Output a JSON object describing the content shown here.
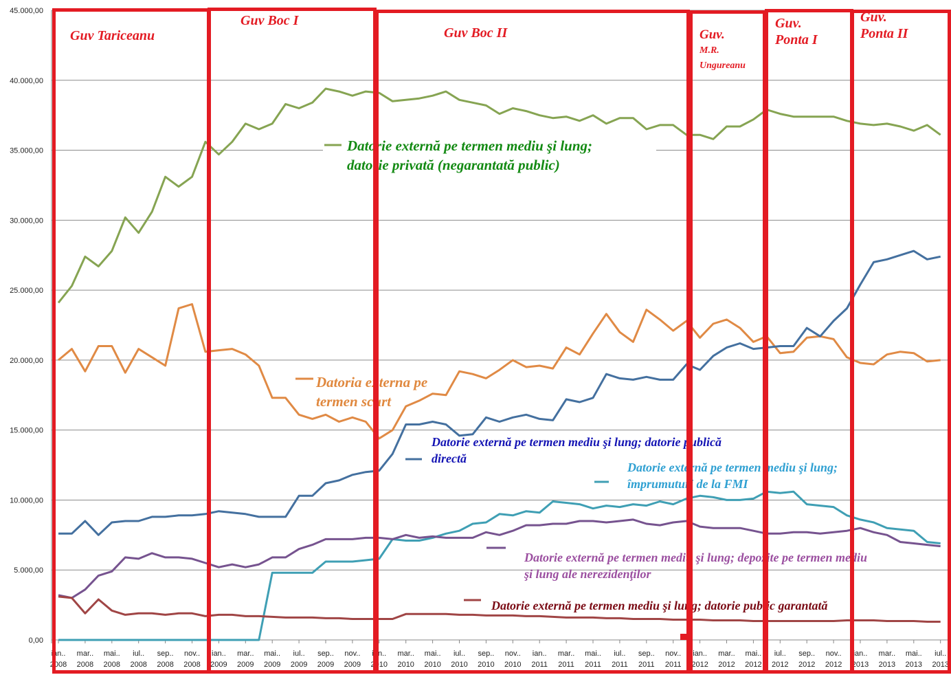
{
  "chart_data": {
    "type": "line",
    "title": "",
    "xlabel": "",
    "ylabel": "",
    "ylim": [
      0,
      45000
    ],
    "grid": true,
    "y_ticks": [
      "0,00",
      "5.000,00",
      "10.000,00",
      "15.000,00",
      "20.000,00",
      "25.000,00",
      "30.000,00",
      "35.000,00",
      "40.000,00",
      "45.000,00"
    ],
    "x_ticks": [
      [
        "ian..",
        "2008"
      ],
      [
        "mar..",
        "2008"
      ],
      [
        "mai..",
        "2008"
      ],
      [
        "iul..",
        "2008"
      ],
      [
        "sep..",
        "2008"
      ],
      [
        "nov..",
        "2008"
      ],
      [
        "ian..",
        "2009"
      ],
      [
        "mar..",
        "2009"
      ],
      [
        "mai..",
        "2009"
      ],
      [
        "iul..",
        "2009"
      ],
      [
        "sep..",
        "2009"
      ],
      [
        "nov..",
        "2009"
      ],
      [
        "ian..",
        "2010"
      ],
      [
        "mar..",
        "2010"
      ],
      [
        "mai..",
        "2010"
      ],
      [
        "iul..",
        "2010"
      ],
      [
        "sep..",
        "2010"
      ],
      [
        "nov..",
        "2010"
      ],
      [
        "ian..",
        "2011"
      ],
      [
        "mar..",
        "2011"
      ],
      [
        "mai..",
        "2011"
      ],
      [
        "iul..",
        "2011"
      ],
      [
        "sep..",
        "2011"
      ],
      [
        "nov..",
        "2011"
      ],
      [
        "ian..",
        "2012"
      ],
      [
        "mar..",
        "2012"
      ],
      [
        "mai..",
        "2012"
      ],
      [
        "iul..",
        "2012"
      ],
      [
        "sep..",
        "2012"
      ],
      [
        "nov..",
        "2012"
      ],
      [
        "ian..",
        "2013"
      ],
      [
        "mar..",
        "2013"
      ],
      [
        "mai..",
        "2013"
      ],
      [
        "iul..",
        "2013"
      ]
    ],
    "series": [
      {
        "name": "Datorie externă pe termen mediu şi lung; datorie privată (negarantată public)",
        "color": "#86a452",
        "label_color": "#138a13",
        "values": [
          24100,
          25300,
          27400,
          26700,
          27800,
          30200,
          29100,
          30600,
          33100,
          32400,
          33100,
          35600,
          34700,
          35600,
          36900,
          36500,
          36900,
          38300,
          38000,
          38400,
          39400,
          39200,
          38900,
          39200,
          39100,
          38500,
          38600,
          38700,
          38900,
          39200,
          38600,
          38400,
          38200,
          37600,
          38000,
          37800,
          37500,
          37300,
          37400,
          37100,
          37500,
          36900,
          37300,
          37300,
          36500,
          36800,
          36800,
          36100,
          36100,
          35800,
          36700,
          36700,
          37200,
          37900,
          37600,
          37400,
          37400,
          37400,
          37400,
          37100,
          36900,
          36800,
          36900,
          36700,
          36400,
          36800,
          36100
        ]
      },
      {
        "name": "Datoria externa pe termen scurt",
        "color": "#e08a45",
        "label_color": "#e0883e",
        "values": [
          20000,
          20800,
          19200,
          21000,
          21000,
          19100,
          20800,
          20200,
          19600,
          23700,
          24000,
          20600,
          20700,
          20800,
          20400,
          19600,
          17300,
          17300,
          16100,
          15800,
          16100,
          15600,
          15900,
          15600,
          14400,
          15000,
          16700,
          17100,
          17600,
          17500,
          19200,
          19000,
          18700,
          19300,
          20000,
          19500,
          19600,
          19400,
          20900,
          20400,
          21900,
          23300,
          22000,
          21300,
          23600,
          22900,
          22100,
          22800,
          21600,
          22600,
          22900,
          22300,
          21300,
          21700,
          20500,
          20600,
          21600,
          21700,
          21500,
          20200,
          19800,
          19700,
          20400,
          20600,
          20500,
          19900,
          20000
        ]
      },
      {
        "name": "Datorie externă pe termen mediu şi lung; datorie publică directă",
        "color": "#44709f",
        "label_color": "#1414b4",
        "values": [
          7600,
          7600,
          8500,
          7500,
          8400,
          8500,
          8500,
          8800,
          8800,
          8900,
          8900,
          9000,
          9200,
          9100,
          9000,
          8800,
          8800,
          8800,
          10300,
          10300,
          11200,
          11400,
          11800,
          12000,
          12100,
          13300,
          15400,
          15400,
          15600,
          15400,
          14600,
          14700,
          15900,
          15600,
          15900,
          16100,
          15800,
          15700,
          17200,
          17000,
          17300,
          19000,
          18700,
          18600,
          18800,
          18600,
          18600,
          19700,
          19300,
          20300,
          20900,
          21200,
          20800,
          20900,
          21000,
          21000,
          22300,
          21700,
          22800,
          23700,
          25400,
          27000,
          27200,
          27500,
          27800,
          27200,
          27400
        ]
      },
      {
        "name": "Datorie externă pe termen mediu şi lung; împrumuturi de la FMI",
        "color": "#3f9fb4",
        "label_color": "#2fa0d2",
        "values": [
          0,
          0,
          0,
          0,
          0,
          0,
          0,
          0,
          0,
          0,
          0,
          0,
          0,
          0,
          0,
          0,
          4800,
          4800,
          4800,
          4800,
          5600,
          5600,
          5600,
          5700,
          5800,
          7200,
          7100,
          7100,
          7300,
          7600,
          7800,
          8300,
          8400,
          9000,
          8900,
          9200,
          9100,
          9900,
          9800,
          9700,
          9400,
          9600,
          9500,
          9700,
          9600,
          9900,
          9700,
          10100,
          10300,
          10200,
          10000,
          10000,
          10100,
          10600,
          10500,
          10600,
          9700,
          9600,
          9500,
          8900,
          8600,
          8400,
          8000,
          7900,
          7800,
          7000,
          6900
        ]
      },
      {
        "name": "Datorie externă pe termen mediu şi lung; depozite pe termen mediu şi lung ale nerezidenţilor",
        "color": "#76538f",
        "label_color": "#9b4fa0",
        "values": [
          3200,
          3000,
          3600,
          4600,
          4900,
          5900,
          5800,
          6200,
          5900,
          5900,
          5800,
          5500,
          5200,
          5400,
          5200,
          5400,
          5900,
          5900,
          6500,
          6800,
          7200,
          7200,
          7200,
          7300,
          7300,
          7200,
          7500,
          7300,
          7400,
          7300,
          7300,
          7300,
          7700,
          7500,
          7800,
          8200,
          8200,
          8300,
          8300,
          8500,
          8500,
          8400,
          8500,
          8600,
          8300,
          8200,
          8400,
          8500,
          8100,
          8000,
          8000,
          8000,
          7800,
          7600,
          7600,
          7700,
          7700,
          7600,
          7700,
          7800,
          8000,
          7700,
          7500,
          7000,
          6900,
          6800,
          6700
        ]
      },
      {
        "name": "Datorie externă pe termen mediu şi lung; datorie public garantată",
        "color": "#a04545",
        "label_color": "#7a0a14",
        "values": [
          3100,
          3000,
          1900,
          2900,
          2100,
          1800,
          1900,
          1900,
          1800,
          1900,
          1900,
          1700,
          1800,
          1800,
          1700,
          1700,
          1650,
          1600,
          1600,
          1600,
          1550,
          1550,
          1500,
          1500,
          1500,
          1500,
          1850,
          1850,
          1850,
          1850,
          1800,
          1800,
          1750,
          1750,
          1750,
          1700,
          1700,
          1650,
          1600,
          1600,
          1600,
          1550,
          1550,
          1500,
          1500,
          1500,
          1450,
          1450,
          1450,
          1400,
          1400,
          1400,
          1350,
          1350,
          1350,
          1350,
          1350,
          1350,
          1350,
          1400,
          1400,
          1400,
          1350,
          1350,
          1350,
          1300,
          1300
        ]
      }
    ],
    "legend_labels": {
      "private": [
        "Datorie externă pe termen mediu şi lung;",
        "datorie privată (negarantată public)"
      ],
      "short": [
        "Datoria externa pe",
        "termen scurt"
      ],
      "direct": [
        "Datorie externă pe termen mediu şi lung; datorie publică",
        "directă"
      ],
      "imf": [
        "Datorie externă pe termen mediu şi lung;",
        "împrumuturi de la FMI"
      ],
      "deposits": [
        "Datorie externă pe termen mediu şi lung; depozite pe termen mediu",
        "şi lung ale nerezidenţilor"
      ],
      "guaranteed": [
        "Datorie externă pe termen mediu şi lung; datorie public garantată"
      ]
    },
    "annotations": {
      "governments": [
        {
          "lines": [
            "Guv Tariceanu"
          ]
        },
        {
          "lines": [
            "Guv Boc I"
          ]
        },
        {
          "lines": [
            "Guv Boc II"
          ]
        },
        {
          "lines": [
            "Guv.",
            "M.R.",
            "Ungureanu"
          ]
        },
        {
          "lines": [
            "Guv.",
            "Ponta I"
          ]
        },
        {
          "lines": [
            "Guv.",
            "Ponta II"
          ]
        }
      ],
      "box_color": "#e31b23"
    }
  }
}
